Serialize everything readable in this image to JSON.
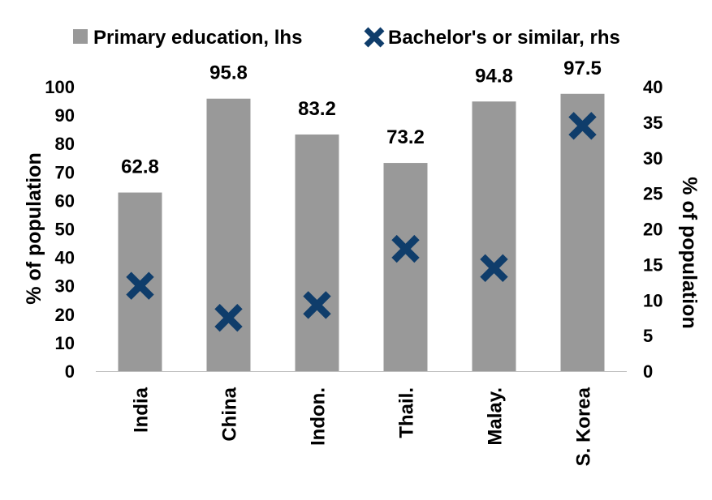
{
  "chart_data": {
    "type": "bar",
    "categories": [
      "India",
      "China",
      "Indon.",
      "Thail.",
      "Malay.",
      "S. Korea"
    ],
    "series": [
      {
        "name": "Primary education, lhs",
        "kind": "bar",
        "axis": "left",
        "color": "#999999",
        "values": [
          62.8,
          95.8,
          83.2,
          73.2,
          94.8,
          97.5
        ],
        "data_labels": [
          "62.8",
          "95.8",
          "83.2",
          "73.2",
          "94.8",
          "97.5"
        ]
      },
      {
        "name": "Bachelor's or similar, rhs",
        "kind": "marker-x",
        "axis": "right",
        "color": "#0f3d6b",
        "values": [
          12.0,
          7.5,
          9.3,
          17.2,
          14.5,
          34.5
        ]
      }
    ],
    "ylabel": "% of population",
    "y2label": "% of population",
    "ylim": [
      0,
      100
    ],
    "y2lim": [
      0,
      40
    ],
    "yticks": [
      "0",
      "10",
      "20",
      "30",
      "40",
      "50",
      "60",
      "70",
      "80",
      "90",
      "100"
    ],
    "y2ticks": [
      "0",
      "5",
      "10",
      "15",
      "20",
      "25",
      "30",
      "35",
      "40"
    ],
    "grid": false,
    "legend": "top"
  }
}
